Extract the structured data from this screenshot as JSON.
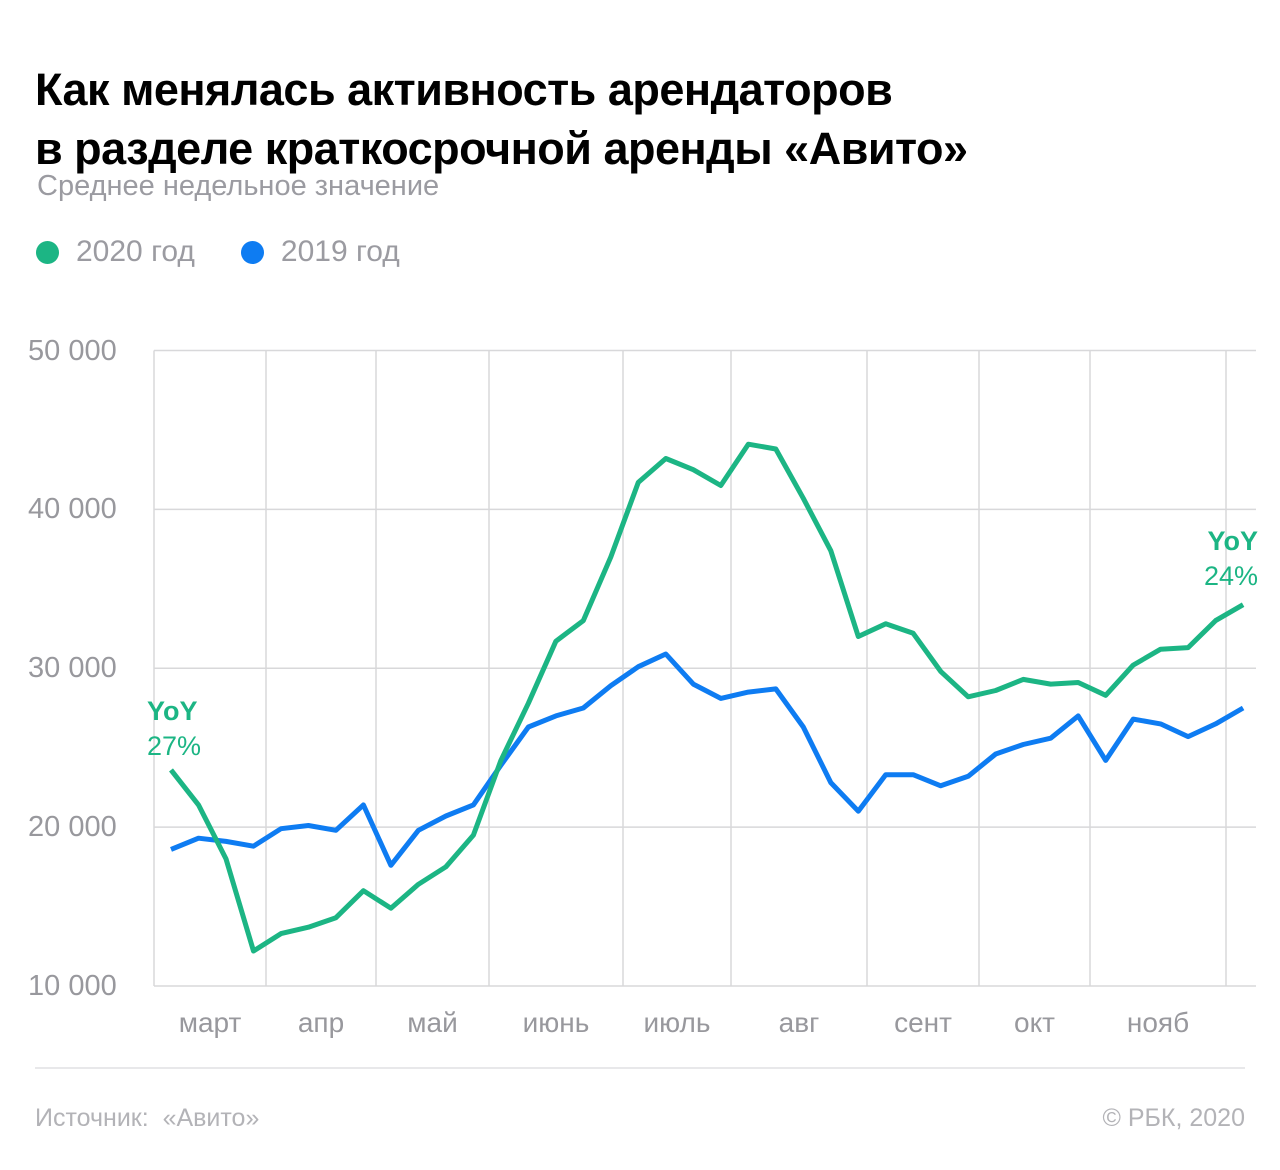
{
  "title": "Как менялась активность арендаторов\nв разделе краткосрочной аренды «Авито»",
  "subtitle": "Среднее недельное значение",
  "legend": [
    {
      "label": "2020 год",
      "color": "#1cb584"
    },
    {
      "label": "2019 год",
      "color": "#0e7cf2"
    }
  ],
  "annotations": {
    "start": {
      "label": "YoY",
      "value": "27%",
      "color": "#1cb584"
    },
    "end": {
      "label": "YoY",
      "value": "24%",
      "color": "#1cb584"
    }
  },
  "footer": {
    "source": "Источник:  «Авито»",
    "copyright": "© РБК, 2020"
  },
  "chart_data": {
    "type": "line",
    "title": "Как менялась активность арендаторов в разделе краткосрочной аренды «Авито»",
    "subtitle": "Среднее недельное значение",
    "x_unit": "weeks, March–November 2020 vs 2019",
    "x_month_labels": [
      "март",
      "апр",
      "май",
      "июнь",
      "июль",
      "авг",
      "сент",
      "окт",
      "нояб"
    ],
    "y_ticks": [
      {
        "label": "50 000",
        "value": 50000
      },
      {
        "label": "40 000",
        "value": 40000
      },
      {
        "label": "30 000",
        "value": 30000
      },
      {
        "label": "20 000",
        "value": 20000
      },
      {
        "label": "10 000",
        "value": 10000
      }
    ],
    "ylim": [
      10000,
      50000
    ],
    "grid": true,
    "legend_position": "top-left",
    "colors": {
      "grid": "#d8d8da",
      "axis_text": "#98989d"
    },
    "series": [
      {
        "name": "2020 год",
        "color": "#1cb584",
        "values": [
          23600,
          21400,
          18000,
          12200,
          13300,
          13700,
          14300,
          16000,
          14900,
          16400,
          17500,
          19500,
          24200,
          27800,
          31700,
          33000,
          37000,
          41700,
          43200,
          42500,
          41500,
          44100,
          43800,
          40700,
          37400,
          32000,
          32800,
          32200,
          29800,
          28200,
          28600,
          29300,
          29000,
          29100,
          28300,
          30200,
          31200,
          31300,
          33000,
          34000
        ]
      },
      {
        "name": "2019 год",
        "color": "#0e7cf2",
        "values": [
          18600,
          19300,
          19100,
          18800,
          19900,
          20100,
          19800,
          21400,
          17600,
          19800,
          20700,
          21400,
          23900,
          26300,
          27000,
          27500,
          28900,
          30100,
          30900,
          29000,
          28100,
          28500,
          28700,
          26300,
          22800,
          21000,
          23300,
          23300,
          22600,
          23200,
          24600,
          25200,
          25600,
          27000,
          24200,
          26800,
          26500,
          25700,
          26500,
          27500
        ]
      }
    ],
    "annotations": [
      {
        "text": "YoY 27%",
        "anchor": "first point of 2020 series"
      },
      {
        "text": "YoY 24%",
        "anchor": "last point of 2020 series"
      }
    ]
  }
}
